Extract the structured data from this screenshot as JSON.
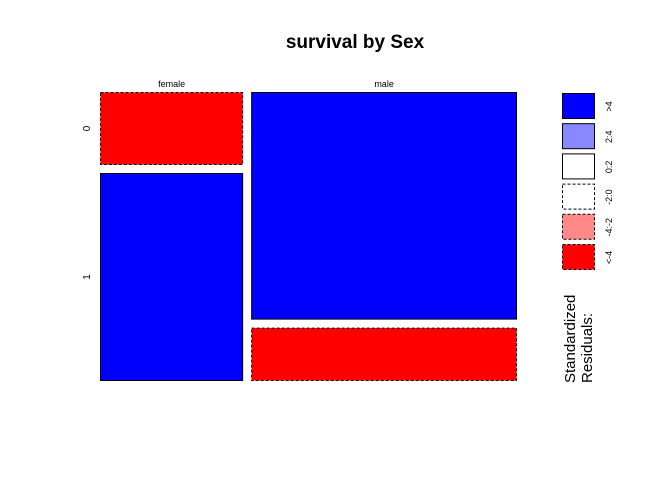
{
  "chart_data": {
    "type": "mosaic",
    "title": "survival by Sex",
    "x_variable_levels": [
      "female",
      "male"
    ],
    "y_variable_levels": [
      "0",
      "1"
    ],
    "cells": [
      {
        "sex": "female",
        "survival": "0",
        "proportion_of_column": 0.26,
        "shade": "<-4"
      },
      {
        "sex": "female",
        "survival": "1",
        "proportion_of_column": 0.74,
        "shade": ">4"
      },
      {
        "sex": "male",
        "survival": "0",
        "proportion_of_column": 0.81,
        "shade": ">4"
      },
      {
        "sex": "male",
        "survival": "1",
        "proportion_of_column": 0.19,
        "shade": "<-4"
      }
    ],
    "column_proportions": {
      "female": 0.35,
      "male": 0.65
    },
    "legend": {
      "title_line1": "Standardized",
      "title_line2": "Residuals:",
      "items": [
        {
          "label": ">4",
          "fill": "#0000ff",
          "dashed": false
        },
        {
          "label": "2:4",
          "fill": "#8888ff",
          "dashed": false
        },
        {
          "label": "0:2",
          "fill": "#ffffff",
          "dashed": false
        },
        {
          "label": "-2:0",
          "fill": "#ffffff",
          "dashed": true
        },
        {
          "label": "-4:-2",
          "fill": "#ff8888",
          "dashed": true
        },
        {
          "label": "<-4",
          "fill": "#ff0000",
          "dashed": true
        }
      ]
    },
    "colors": {
      "strong_positive": "#0000ff",
      "strong_negative": "#ff0000"
    }
  }
}
